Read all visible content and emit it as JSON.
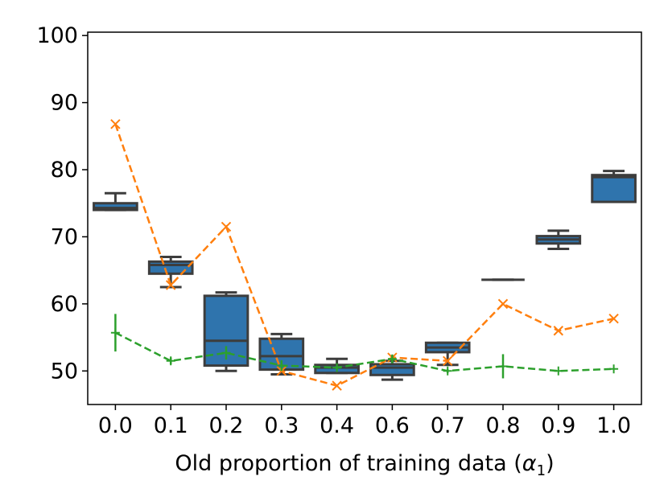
{
  "chart_data": {
    "type": "box",
    "title": "",
    "xlabel": "Old proportion of training data (",
    "xlabel_symbol": "α",
    "xlabel_subscript": "1",
    "xlabel_suffix": ")",
    "ylabel": "",
    "categories": [
      "0.0",
      "0.1",
      "0.2",
      "0.3",
      "0.4",
      "0.6",
      "0.7",
      "0.8",
      "0.9",
      "1.0"
    ],
    "ylim": [
      45,
      100.5
    ],
    "yticks": [
      50,
      60,
      70,
      80,
      90,
      100
    ],
    "ytick_labels": [
      "50",
      "60",
      "70",
      "80",
      "90",
      "100"
    ],
    "grid": false,
    "boxes": [
      {
        "category": "0.0",
        "whisker_low": 74.0,
        "q1": 74.0,
        "median": 74.3,
        "q3": 75.0,
        "whisker_high": 76.5
      },
      {
        "category": "0.1",
        "whisker_low": 62.5,
        "q1": 64.5,
        "median": 65.8,
        "q3": 66.3,
        "whisker_high": 67.0
      },
      {
        "category": "0.2",
        "whisker_low": 50.0,
        "q1": 50.8,
        "median": 54.5,
        "q3": 61.2,
        "whisker_high": 61.7
      },
      {
        "category": "0.3",
        "whisker_low": 49.5,
        "q1": 50.2,
        "median": 52.2,
        "q3": 54.8,
        "whisker_high": 55.5
      },
      {
        "category": "0.4",
        "whisker_low": 49.7,
        "q1": 49.7,
        "median": 50.5,
        "q3": 50.9,
        "whisker_high": 51.8
      },
      {
        "category": "0.6",
        "whisker_low": 48.7,
        "q1": 49.4,
        "median": 50.5,
        "q3": 51.0,
        "whisker_high": 51.5
      },
      {
        "category": "0.7",
        "whisker_low": 50.9,
        "q1": 52.8,
        "median": 53.5,
        "q3": 54.2,
        "whisker_high": 54.2
      },
      {
        "category": "0.8",
        "whisker_low": 63.6,
        "q1": 63.6,
        "median": 63.6,
        "q3": 63.6,
        "whisker_high": 63.6
      },
      {
        "category": "0.9",
        "whisker_low": 68.2,
        "q1": 69.0,
        "median": 69.6,
        "q3": 70.1,
        "whisker_high": 70.9
      },
      {
        "category": "1.0",
        "whisker_low": 75.2,
        "q1": 75.2,
        "median": 78.9,
        "q3": 79.2,
        "whisker_high": 79.8
      }
    ],
    "series": [
      {
        "name": "orange",
        "marker": "x",
        "color": "#ff7f0e",
        "values": [
          86.8,
          62.8,
          71.5,
          50.0,
          47.8,
          52.0,
          51.5,
          60.0,
          56.0,
          57.8
        ]
      },
      {
        "name": "green",
        "marker": "+",
        "color": "#2ca02c",
        "values": [
          55.7,
          51.5,
          52.7,
          50.8,
          50.5,
          51.8,
          50.0,
          50.7,
          50.0,
          50.3
        ],
        "errors": [
          2.8,
          0.5,
          1.0,
          0.8,
          0.3,
          0.6,
          0.3,
          1.8,
          0.0,
          0.0
        ]
      }
    ],
    "colors": {
      "box_fill": "#2f74ad",
      "box_edge": "#3d3d3d",
      "axis": "#000000"
    }
  }
}
